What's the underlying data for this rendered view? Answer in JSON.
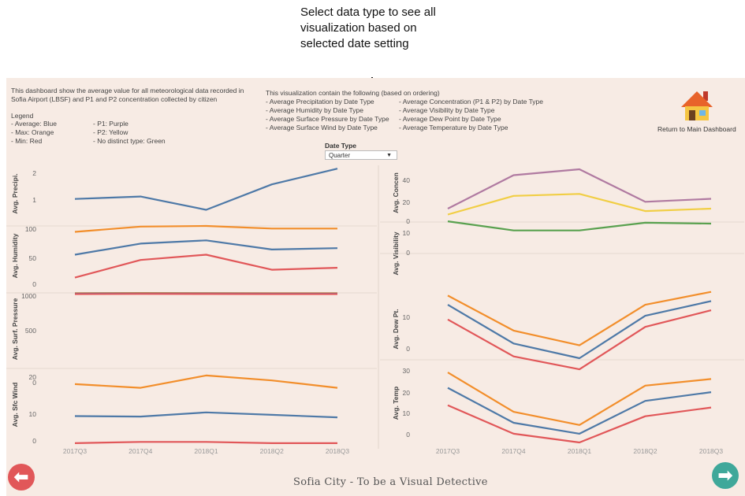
{
  "annotation": {
    "lines": [
      "Select data type to see all",
      "visualization based on",
      "selected date setting"
    ]
  },
  "intro": {
    "line1": "This dashboard show the average value for all meteorological data recorded in",
    "line2": "Sofia Airport (LBSF) and P1 and P2 concentration collected by citizen"
  },
  "legend": {
    "title": "Legend",
    "items": [
      "- Average:  Blue",
      "- Max: Orange",
      "- Min: Red",
      "- P1: Purple",
      "- P2: Yellow",
      "- No distinct type: Green"
    ]
  },
  "contents": {
    "title": "This visualization contain the following (based on ordering)",
    "col1": [
      "- Average Precipitation by Date Type",
      "- Average Humidity by Date Type",
      "- Average Surface Pressure by Date Type",
      "- Average Surface Wind by Date Type"
    ],
    "col2": [
      "- Average Concentration (P1 & P2) by Date Type",
      "- Average Visibility by Date Type",
      "- Average Dew Point by Date Type",
      "- Average Temperature by Date Type"
    ]
  },
  "filter": {
    "label": "Date Type",
    "value": "Quarter"
  },
  "home": {
    "label": "Return to Main Dashboard"
  },
  "footer": {
    "title": "Sofia City - To be a Visual Detective"
  },
  "colors": {
    "background": "#f7ebe4",
    "blue": "#4e79a7",
    "orange": "#f28e2b",
    "red": "#e15759",
    "purple": "#b07aa1",
    "yellow": "#f1ce44",
    "green": "#59a14f",
    "back_button": "#e15759",
    "next_button": "#3fa89a"
  },
  "icons": {
    "home": "house-icon",
    "back": "arrow-left-icon",
    "next": "arrow-right-icon",
    "pointer": "arrow-down-icon"
  },
  "chart_data": [
    {
      "type": "line",
      "ylabel": "Avg. Precipi.",
      "categories": [
        "2017Q3",
        "2017Q4",
        "2018Q1",
        "2018Q2",
        "2018Q3"
      ],
      "ylim": [
        0,
        2.5
      ],
      "yticks": [
        "2",
        "1"
      ],
      "series": [
        {
          "name": "Average",
          "color": "blue",
          "values": [
            1.05,
            1.15,
            0.6,
            1.65,
            2.3
          ]
        }
      ]
    },
    {
      "type": "line",
      "ylabel": "Avg. Humidity",
      "categories": [
        "2017Q3",
        "2017Q4",
        "2018Q1",
        "2018Q2",
        "2018Q3"
      ],
      "ylim": [
        0,
        100
      ],
      "yticks": [
        "100",
        "50",
        "0"
      ],
      "series": [
        {
          "name": "Max",
          "color": "orange",
          "values": [
            91,
            99,
            100,
            96,
            96
          ]
        },
        {
          "name": "Average",
          "color": "blue",
          "values": [
            56,
            73,
            78,
            64,
            66
          ]
        },
        {
          "name": "Min",
          "color": "red",
          "values": [
            21,
            48,
            56,
            33,
            36
          ]
        }
      ]
    },
    {
      "type": "line",
      "ylabel": "Avg. Surf. Pressure",
      "categories": [
        "2017Q3",
        "2017Q4",
        "2018Q1",
        "2018Q2",
        "2018Q3"
      ],
      "ylim": [
        0,
        1050
      ],
      "yticks": [
        "1000",
        "500",
        "0"
      ],
      "series": [
        {
          "name": "Max",
          "color": "orange",
          "values": [
            1025,
            1027,
            1026,
            1025,
            1025
          ]
        },
        {
          "name": "Average",
          "color": "blue",
          "values": [
            1019,
            1021,
            1020,
            1019,
            1019
          ]
        },
        {
          "name": "Min",
          "color": "red",
          "values": [
            1012,
            1014,
            1013,
            1012,
            1012
          ]
        }
      ]
    },
    {
      "type": "line",
      "ylabel": "Avg. Sfc Wind",
      "categories": [
        "2017Q3",
        "2017Q4",
        "2018Q1",
        "2018Q2",
        "2018Q3"
      ],
      "ylim": [
        -1,
        31
      ],
      "yticks": [
        "20",
        "10",
        "0"
      ],
      "series": [
        {
          "name": "Max",
          "color": "orange",
          "values": [
            24,
            22.5,
            27.5,
            25.5,
            22.5
          ]
        },
        {
          "name": "Average",
          "color": "blue",
          "values": [
            11,
            10.8,
            12.5,
            11.5,
            10.5
          ]
        },
        {
          "name": "Min",
          "color": "red",
          "values": [
            0,
            0.5,
            0.5,
            0,
            0
          ]
        }
      ]
    },
    {
      "type": "line",
      "ylabel": "Avg. Concen",
      "categories": [
        "2017Q3",
        "2017Q4",
        "2018Q1",
        "2018Q2",
        "2018Q3"
      ],
      "ylim": [
        0,
        60
      ],
      "yticks": [
        "40",
        "20",
        "0"
      ],
      "series": [
        {
          "name": "P1",
          "color": "purple",
          "values": [
            12,
            46,
            52,
            19,
            22
          ]
        },
        {
          "name": "P2",
          "color": "yellow",
          "values": [
            6,
            25,
            27,
            9.5,
            12
          ]
        }
      ]
    },
    {
      "type": "line",
      "ylabel": "Avg. Visibility",
      "categories": [
        "2017Q3",
        "2017Q4",
        "2018Q1",
        "2018Q2",
        "2018Q3"
      ],
      "ylim": [
        0,
        11
      ],
      "yticks": [
        "10",
        "0"
      ],
      "series": [
        {
          "name": "Visibility",
          "color": "green",
          "values": [
            10.7,
            7.5,
            7.5,
            10.2,
            9.9
          ]
        }
      ]
    },
    {
      "type": "line",
      "ylabel": "Avg. Dew Pt.",
      "categories": [
        "2017Q3",
        "2017Q4",
        "2018Q1",
        "2018Q2",
        "2018Q3"
      ],
      "ylim": [
        -1,
        18
      ],
      "yticks": [
        "10",
        "0"
      ],
      "series": [
        {
          "name": "Max",
          "color": "orange",
          "values": [
            16,
            6.5,
            2.5,
            13.5,
            17
          ]
        },
        {
          "name": "Average",
          "color": "blue",
          "values": [
            13.5,
            3,
            -1,
            10.5,
            14.5
          ]
        },
        {
          "name": "Min",
          "color": "red",
          "values": [
            9.5,
            -0.5,
            -4,
            7.5,
            12
          ]
        }
      ]
    },
    {
      "type": "line",
      "ylabel": "Avg. Temp",
      "categories": [
        "2017Q3",
        "2017Q4",
        "2018Q1",
        "2018Q2",
        "2018Q3"
      ],
      "ylim": [
        -2,
        34
      ],
      "yticks": [
        "30",
        "20",
        "10",
        "0"
      ],
      "series": [
        {
          "name": "Max",
          "color": "orange",
          "values": [
            30,
            12,
            6,
            24,
            27
          ]
        },
        {
          "name": "Average",
          "color": "blue",
          "values": [
            23,
            7,
            2,
            17,
            21
          ]
        },
        {
          "name": "Min",
          "color": "red",
          "values": [
            15,
            2,
            -2,
            10,
            14
          ]
        }
      ]
    }
  ]
}
